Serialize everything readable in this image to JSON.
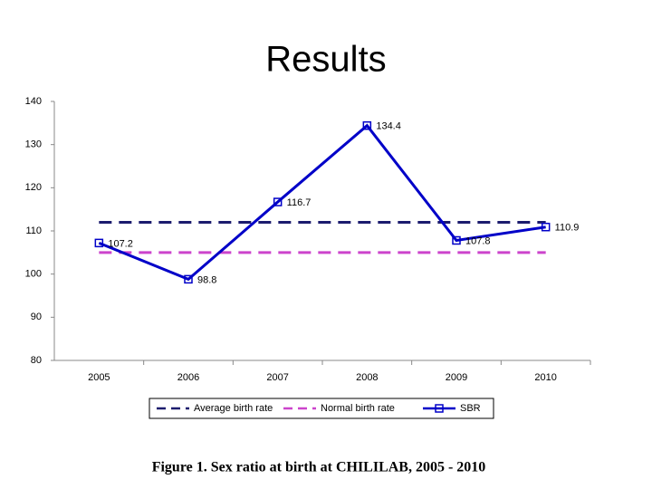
{
  "chart_data": {
    "type": "line",
    "title": "Results",
    "caption": "Figure 1. Sex ratio at birth at CHILILAB, 2005 - 2010",
    "categories": [
      "2005",
      "2006",
      "2007",
      "2008",
      "2009",
      "2010"
    ],
    "series": [
      {
        "name": "Average birth rate",
        "color": "#1c1c6e",
        "line_style": "dashed",
        "values": [
          112,
          112,
          112,
          112,
          112,
          112
        ]
      },
      {
        "name": "Normal birth rate",
        "color": "#cc44cc",
        "line_style": "dashed",
        "values": [
          105,
          105,
          105,
          105,
          105,
          105
        ]
      },
      {
        "name": "SBR",
        "color": "#0000c8",
        "line_style": "solid",
        "marker": "square",
        "data_labels": true,
        "values": [
          107.2,
          98.8,
          116.7,
          134.4,
          107.8,
          110.9
        ]
      }
    ],
    "ylim": [
      80,
      140
    ],
    "yticks": [
      80,
      90,
      100,
      110,
      120,
      130,
      140
    ],
    "grid": false,
    "legend": "bottom"
  }
}
